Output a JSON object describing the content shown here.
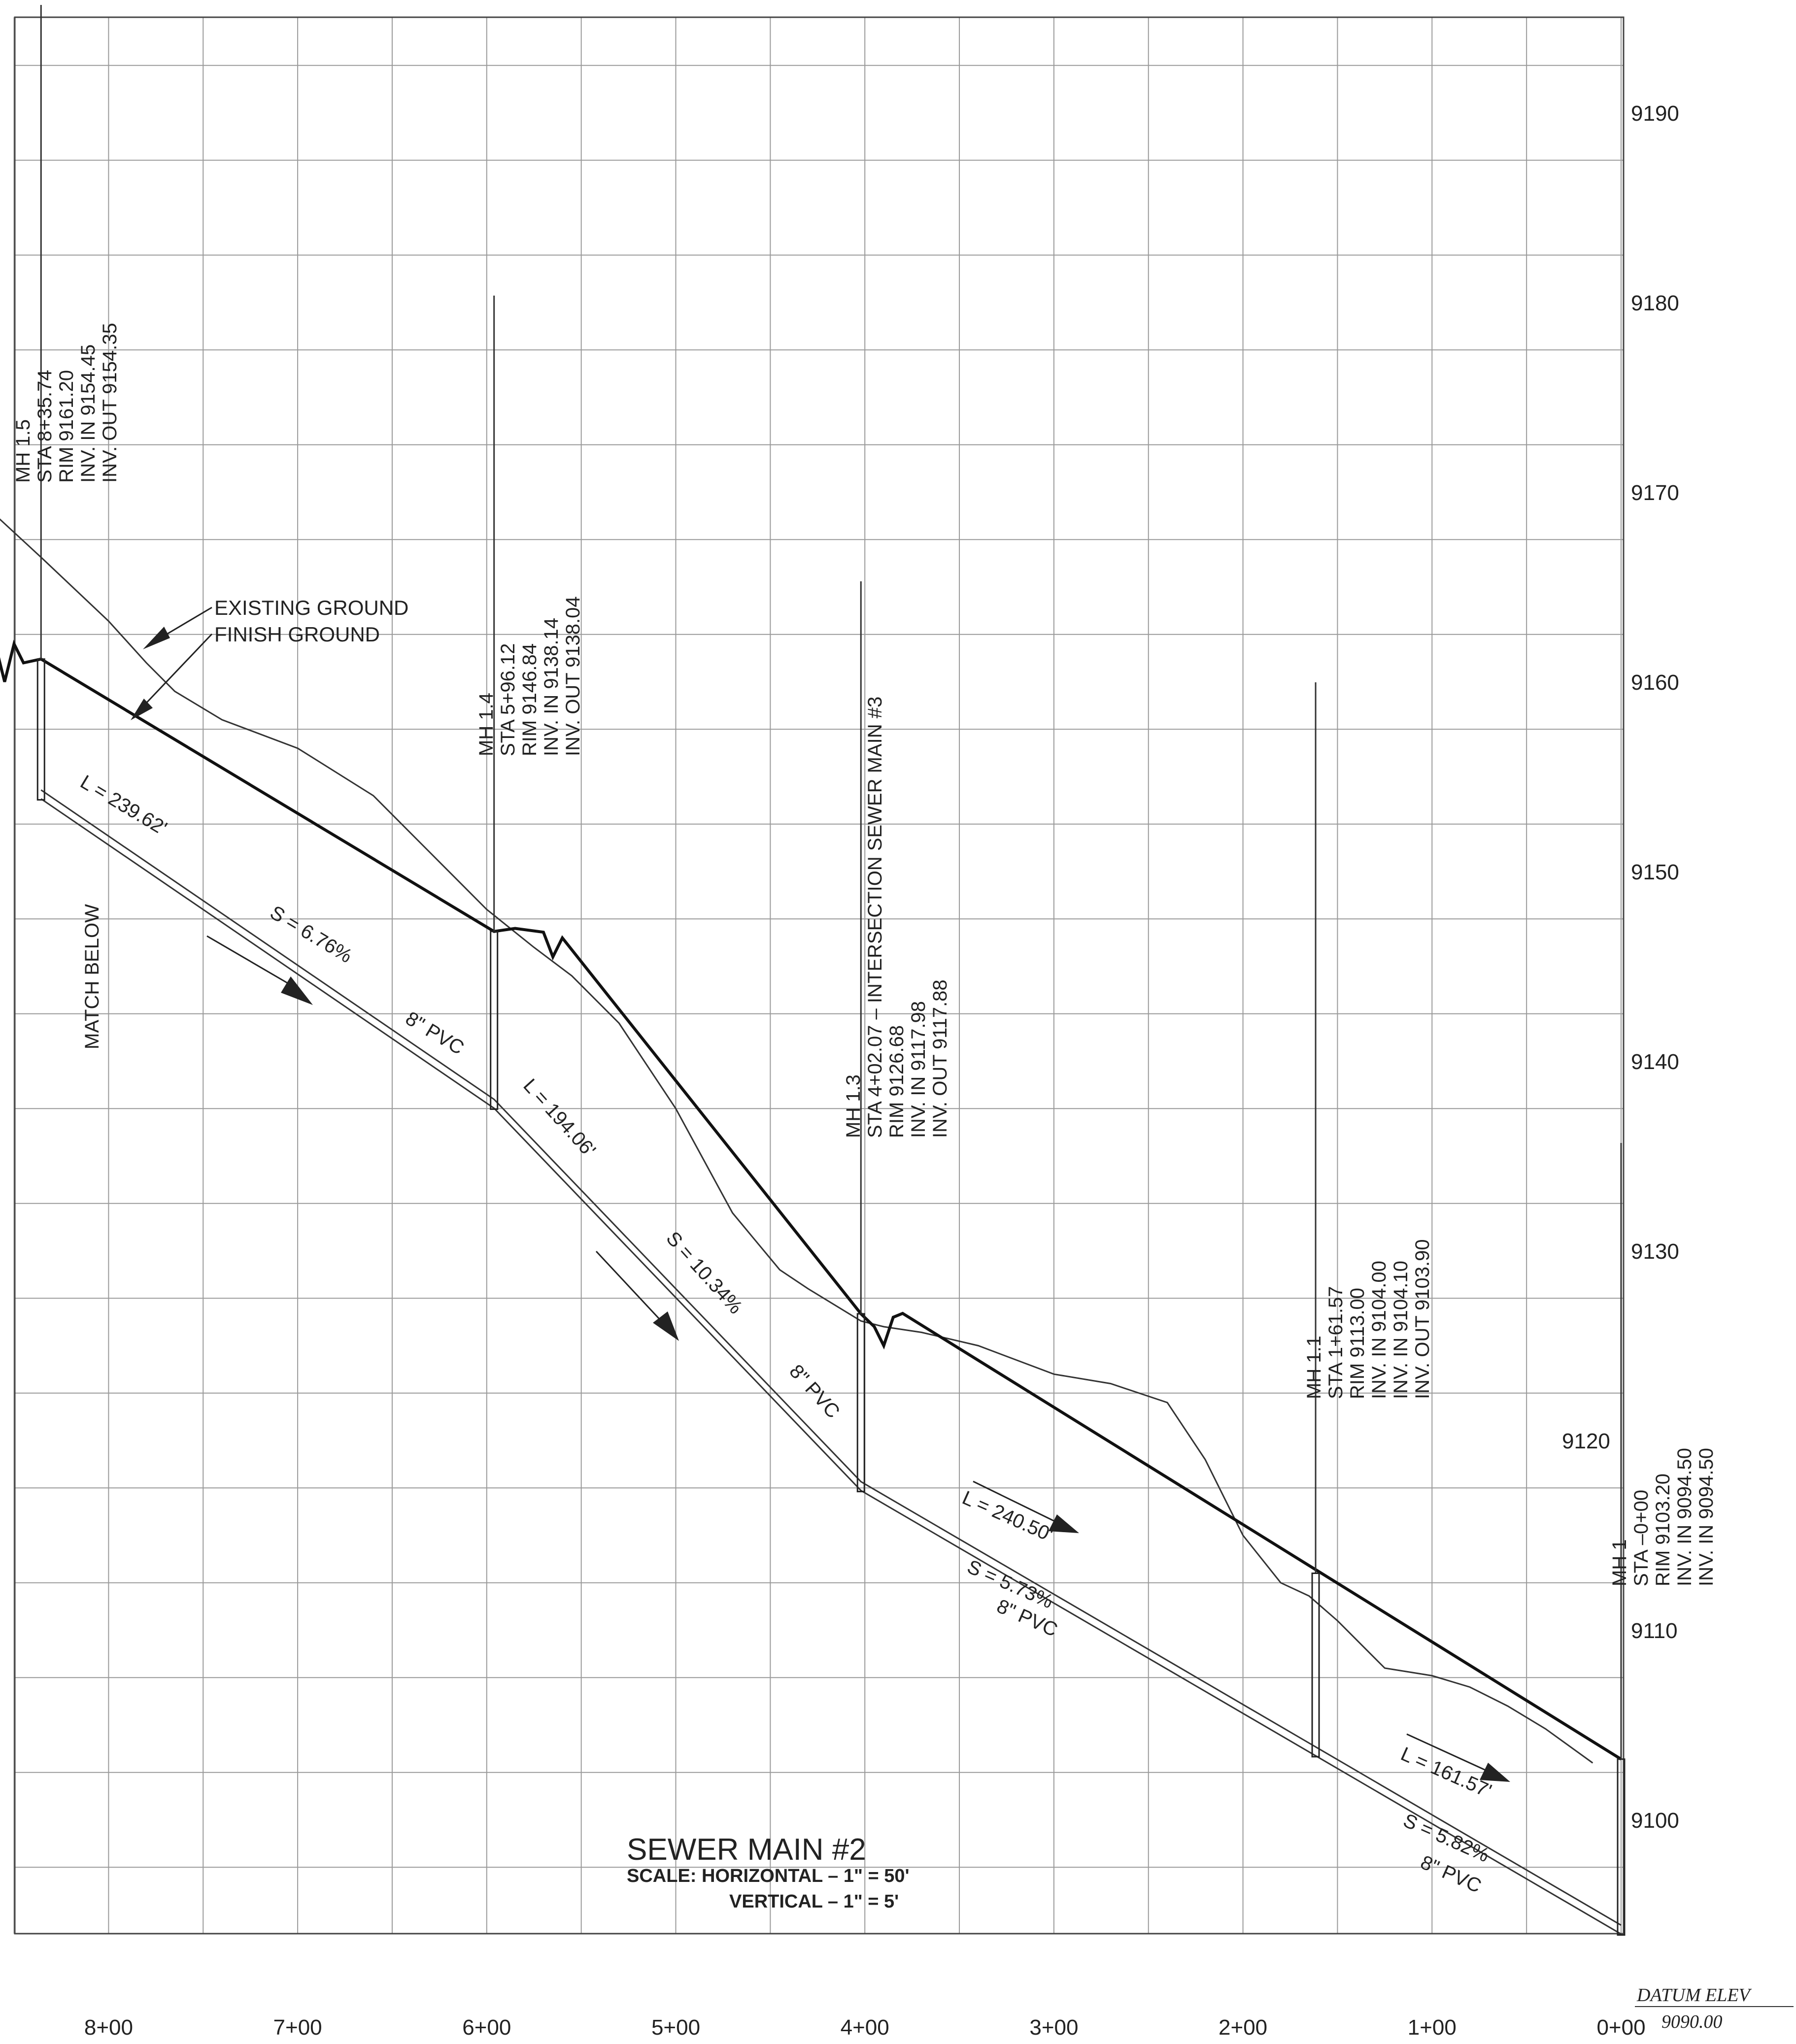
{
  "title": {
    "name": "SEWER MAIN #2",
    "scale_line1": "SCALE:  HORIZONTAL  –  1\"  =  50'",
    "scale_line2": "VERTICAL  –  1\"  =  5'"
  },
  "datum": {
    "label": "DATUM ELEV",
    "value": "9090.00"
  },
  "match_note": "MATCH BELOW",
  "callouts": {
    "existing": "EXISTING GROUND",
    "finish": "FINISH GROUND"
  },
  "axes": {
    "station_labels": [
      "8+00",
      "7+00",
      "6+00",
      "5+00",
      "4+00",
      "3+00",
      "2+00",
      "1+00",
      "0+00"
    ],
    "elevation_labels": [
      {
        "value": 9190,
        "label": "9190"
      },
      {
        "value": 9180,
        "label": "9180"
      },
      {
        "value": 9170,
        "label": "9170"
      },
      {
        "value": 9160,
        "label": "9160"
      },
      {
        "value": 9150,
        "label": "9150"
      },
      {
        "value": 9140,
        "label": "9140"
      },
      {
        "value": 9130,
        "label": "9130"
      },
      {
        "value": 9120,
        "label": "9120"
      },
      {
        "value": 9110,
        "label": "9110"
      },
      {
        "value": 9100,
        "label": "9100"
      }
    ]
  },
  "manholes": [
    {
      "id": "mh15",
      "station": 835.74,
      "rim": 9161.2,
      "invert": 9154.35,
      "lines": [
        "MH 1.5",
        "STA 8+35.74",
        "RIM 9161.20",
        "INV. IN 9154.45",
        "INV. OUT 9154.35"
      ]
    },
    {
      "id": "mh14",
      "station": 596.12,
      "rim": 9146.84,
      "invert": 9138.04,
      "lines": [
        "MH 1.4",
        "STA 5+96.12",
        "RIM 9146.84",
        "INV. IN 9138.14",
        "INV. OUT 9138.04"
      ]
    },
    {
      "id": "mh13",
      "station": 402.07,
      "rim": 9126.68,
      "invert": 9117.88,
      "lines": [
        "MH 1.3",
        "STA 4+02.07  –  INTERSECTION SEWER MAIN #3",
        "RIM 9126.68",
        "INV. IN 9117.98",
        "INV. OUT 9117.88"
      ]
    },
    {
      "id": "mh11",
      "station": 161.57,
      "rim": 9113.0,
      "invert": 9103.9,
      "lines": [
        "MH 1.1",
        "STA 1+61.57",
        "RIM 9113.00",
        "INV. IN 9104.00",
        "INV. IN 9104.10",
        "INV. OUT 9103.90"
      ]
    },
    {
      "id": "mh1",
      "station": 0,
      "rim": 9103.2,
      "invert": 9094.5,
      "lines": [
        "MH 1",
        "STA  –0+00",
        "RIM 9103.20",
        "INV. IN 9094.50",
        "INV. IN 9094.50"
      ]
    }
  ],
  "segments": [
    {
      "length": "L = 239.62'",
      "slope": "S = 6.76%",
      "pipe": "8\" PVC"
    },
    {
      "length": "L = 194.06'",
      "slope": "S = 10.34%",
      "pipe": "8\" PVC"
    },
    {
      "length": "L = 240.50'",
      "slope": "S = 5.73%",
      "pipe": "8\" PVC"
    },
    {
      "length": "L = 161.57'",
      "slope": "S = 5.82%",
      "pipe": "8\" PVC"
    }
  ],
  "chart_data": {
    "type": "line",
    "xlabel": "",
    "ylabel": "",
    "xlim": [
      860,
      0
    ],
    "ylim": [
      9090,
      9197
    ],
    "series": [
      {
        "name": "EXISTING GROUND",
        "x": [
          860,
          835,
          800,
          780,
          765,
          740,
          700,
          660,
          630,
          600,
          575,
          555,
          530,
          500,
          470,
          445,
          430,
          402,
          390,
          370,
          340,
          300,
          270,
          240,
          220,
          200,
          180,
          165,
          150,
          125,
          100,
          80,
          60,
          40,
          15
        ],
        "y": [
          9168.8,
          9166.5,
          9163.2,
          9161.0,
          9159.5,
          9158.0,
          9156.5,
          9154.0,
          9151.0,
          9148.0,
          9146.0,
          9144.5,
          9142.0,
          9137.5,
          9132.0,
          9129.0,
          9128.0,
          9126.3,
          9126.0,
          9125.7,
          9125.0,
          9123.5,
          9123.0,
          9122.0,
          9119.0,
          9115.0,
          9112.5,
          9111.8,
          9110.5,
          9108.0,
          9107.6,
          9107.0,
          9106.0,
          9104.8,
          9103.0
        ]
      },
      {
        "name": "FINISH GROUND",
        "x": [
          860,
          855,
          850,
          845,
          835.74,
          596.12,
          585,
          570,
          565,
          560,
          402.07,
          395,
          390,
          385,
          380,
          0
        ],
        "y": [
          9162.0,
          9160.0,
          9162.0,
          9161.0,
          9161.2,
          9146.84,
          9147.0,
          9146.8,
          9145.5,
          9146.5,
          9126.68,
          9126.0,
          9125.0,
          9126.5,
          9126.7,
          9103.2
        ]
      },
      {
        "name": "",
        "x": [
          835.74,
          596.12,
          402.07,
          161.57,
          0
        ],
        "y": [
          9154.35,
          9138.04,
          9117.88,
          9103.9,
          9094.5
        ]
      }
    ]
  }
}
